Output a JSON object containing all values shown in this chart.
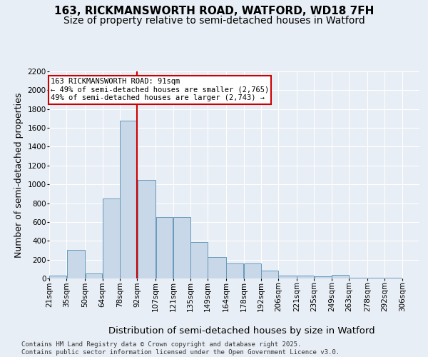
{
  "title_line1": "163, RICKMANSWORTH ROAD, WATFORD, WD18 7FH",
  "title_line2": "Size of property relative to semi-detached houses in Watford",
  "xlabel": "Distribution of semi-detached houses by size in Watford",
  "ylabel": "Number of semi-detached properties",
  "footnote": "Contains HM Land Registry data © Crown copyright and database right 2025.\nContains public sector information licensed under the Open Government Licence v3.0.",
  "annotation_title": "163 RICKMANSWORTH ROAD: 91sqm",
  "annotation_line1": "← 49% of semi-detached houses are smaller (2,765)",
  "annotation_line2": "49% of semi-detached houses are larger (2,743) →",
  "property_size": 91,
  "bar_left_edges": [
    21,
    35,
    50,
    64,
    78,
    92,
    107,
    121,
    135,
    149,
    164,
    178,
    192,
    206,
    221,
    235,
    249,
    263,
    278,
    292
  ],
  "bar_widths": [
    14,
    15,
    14,
    14,
    14,
    15,
    14,
    14,
    14,
    15,
    14,
    14,
    14,
    15,
    14,
    14,
    14,
    15,
    14,
    14
  ],
  "bar_heights": [
    30,
    300,
    50,
    850,
    1680,
    1050,
    650,
    650,
    390,
    230,
    160,
    160,
    80,
    30,
    30,
    25,
    40,
    5,
    5,
    5
  ],
  "bar_color": "#c8d8e8",
  "bar_edge_color": "#6699bb",
  "vline_color": "#cc0000",
  "vline_x": 92,
  "annotation_box_color": "#cc0000",
  "ylim": [
    0,
    2200
  ],
  "yticks": [
    0,
    200,
    400,
    600,
    800,
    1000,
    1200,
    1400,
    1600,
    1800,
    2000,
    2200
  ],
  "tick_labels": [
    "21sqm",
    "35sqm",
    "50sqm",
    "64sqm",
    "78sqm",
    "92sqm",
    "107sqm",
    "121sqm",
    "135sqm",
    "149sqm",
    "164sqm",
    "178sqm",
    "192sqm",
    "206sqm",
    "221sqm",
    "235sqm",
    "249sqm",
    "263sqm",
    "278sqm",
    "292sqm",
    "306sqm"
  ],
  "background_color": "#e8eef5",
  "plot_background_color": "#e8eef5",
  "grid_color": "#ffffff",
  "title_fontsize": 11,
  "subtitle_fontsize": 10,
  "axis_label_fontsize": 9,
  "tick_fontsize": 7.5,
  "annotation_fontsize": 7.5,
  "footnote_fontsize": 6.5
}
